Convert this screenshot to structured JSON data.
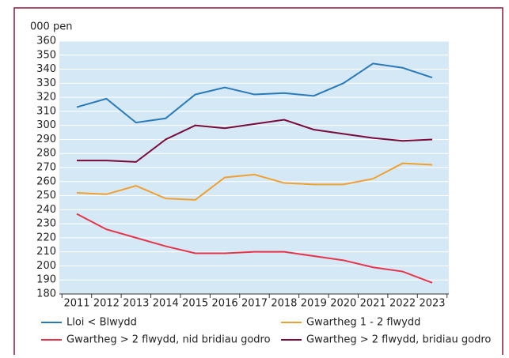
{
  "chart_data": {
    "type": "line",
    "y_label": "000 pen",
    "categories": [
      "2011",
      "2012",
      "2013",
      "2014",
      "2015",
      "2016",
      "2017",
      "2018",
      "2019",
      "2020",
      "2021",
      "2022",
      "2023"
    ],
    "series": [
      {
        "name": "Lloi < Blwydd",
        "color": "#2a7ab8",
        "values": [
          313,
          319,
          302,
          305,
          322,
          327,
          322,
          323,
          321,
          330,
          344,
          341,
          334
        ]
      },
      {
        "name": "Gwartheg 1 - 2 flwydd",
        "color": "#f0a030",
        "values": [
          252,
          251,
          257,
          248,
          247,
          263,
          265,
          259,
          258,
          258,
          262,
          273,
          272
        ]
      },
      {
        "name": "Gwartheg > 2 flwydd, nid bridiau godro",
        "color": "#e8344a",
        "values": [
          237,
          226,
          220,
          214,
          209,
          209,
          210,
          210,
          207,
          204,
          199,
          196,
          188
        ]
      },
      {
        "name": "Gwartheg > 2 flwydd, bridiau godro",
        "color": "#7a0a3a",
        "values": [
          275,
          275,
          274,
          290,
          300,
          298,
          301,
          304,
          297,
          294,
          291,
          289,
          290
        ]
      }
    ],
    "ylim": [
      180,
      360
    ],
    "yticks": [
      180,
      190,
      200,
      210,
      220,
      230,
      240,
      250,
      260,
      270,
      280,
      290,
      300,
      310,
      320,
      330,
      340,
      350,
      360
    ],
    "grid": true
  }
}
